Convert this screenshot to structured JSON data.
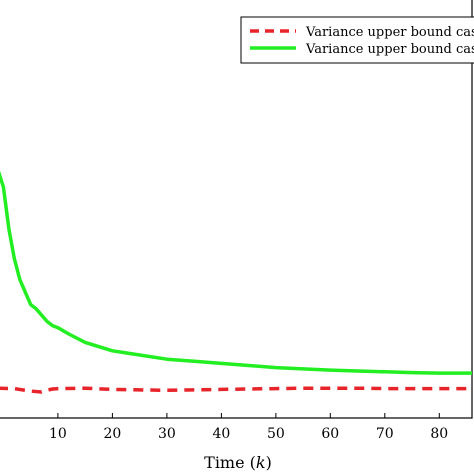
{
  "chart_data": {
    "type": "line",
    "xlabel": "Time (k)",
    "xlabel_parts": {
      "prefix": "Time (",
      "var": "k",
      "suffix": ")"
    },
    "ylabel": "",
    "xlim": [
      -1,
      86
    ],
    "ylim": [
      0.0,
      1.0
    ],
    "x_ticks": [
      10,
      20,
      30,
      40,
      50,
      60,
      70,
      80
    ],
    "grid": false,
    "legend_position": "top-right",
    "series": [
      {
        "name": "Variance upper bound case",
        "color": "#e8242b",
        "dash": true,
        "x": [
          -1,
          2,
          5,
          7,
          8,
          9,
          10,
          15,
          20,
          25,
          30,
          35,
          40,
          45,
          50,
          55,
          60,
          65,
          70,
          75,
          80,
          85,
          86
        ],
        "y": [
          0.071,
          0.07,
          0.064,
          0.062,
          0.066,
          0.069,
          0.07,
          0.071,
          0.068,
          0.067,
          0.066,
          0.067,
          0.068,
          0.069,
          0.07,
          0.071,
          0.071,
          0.071,
          0.07,
          0.07,
          0.07,
          0.07,
          0.07
        ]
      },
      {
        "name": "Variance upper bound case",
        "color": "#22ee22",
        "dash": false,
        "x": [
          -1,
          0,
          1,
          2,
          3,
          4,
          5,
          6,
          7,
          8,
          9,
          10,
          12,
          15,
          20,
          25,
          30,
          35,
          40,
          45,
          50,
          55,
          60,
          65,
          70,
          75,
          80,
          85,
          86
        ],
        "y": [
          0.59,
          0.55,
          0.45,
          0.38,
          0.33,
          0.3,
          0.27,
          0.26,
          0.245,
          0.23,
          0.22,
          0.215,
          0.2,
          0.18,
          0.16,
          0.15,
          0.14,
          0.135,
          0.13,
          0.125,
          0.12,
          0.117,
          0.114,
          0.112,
          0.11,
          0.108,
          0.107,
          0.107,
          0.107
        ]
      }
    ]
  }
}
